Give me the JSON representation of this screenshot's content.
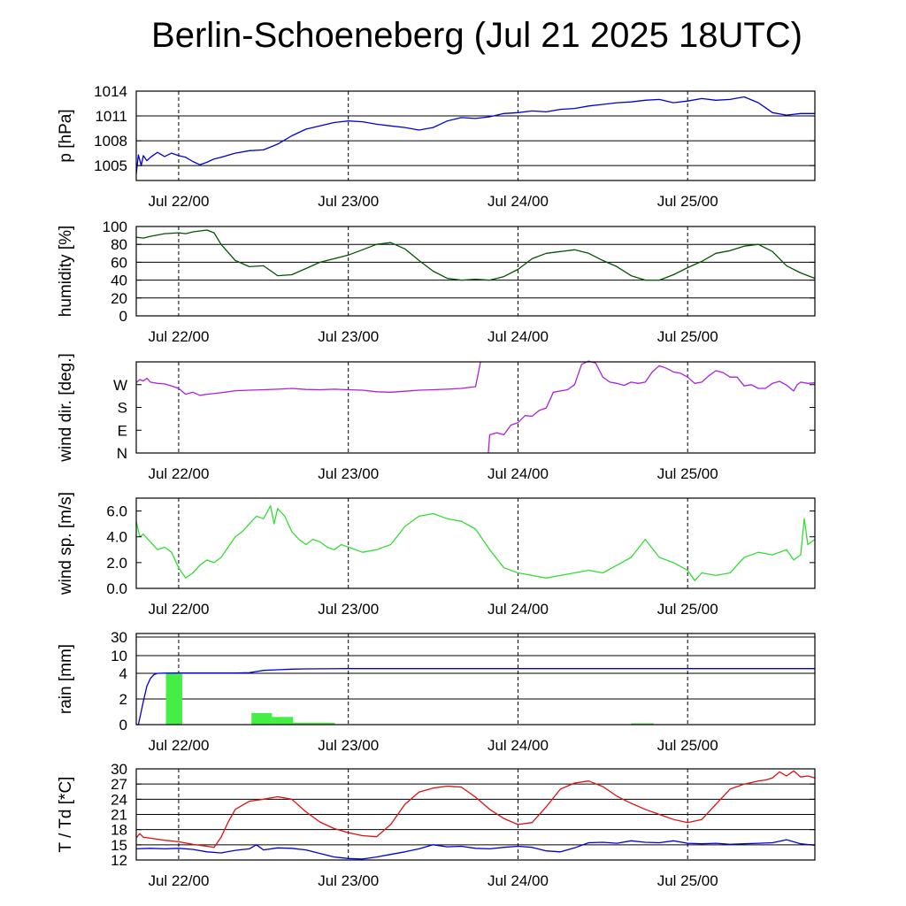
{
  "title": "Berlin-Schoeneberg (Jul 21 2025 18UTC)",
  "chart_data": [
    {
      "type": "line",
      "ylabel": "p [hPa]",
      "x_ticks": [
        "Jul 22/00",
        "Jul 23/00",
        "Jul 24/00",
        "Jul 25/00"
      ],
      "x_tick_hours": [
        6,
        30,
        54,
        78
      ],
      "xlim_hours": [
        0,
        96
      ],
      "yticks": [
        "1005",
        "1008",
        "1011",
        "1014"
      ],
      "ytick_values": [
        1005,
        1008,
        1011,
        1014
      ],
      "ylim": [
        1003.2,
        1014
      ],
      "grid": true,
      "series": [
        {
          "color": "#0000dd",
          "x": [
            0,
            0.3,
            0.7,
            1,
            1.5,
            2,
            3,
            4,
            5,
            6,
            7,
            8,
            9,
            10,
            11,
            12,
            14,
            16,
            18,
            20,
            22,
            24,
            26,
            28,
            30,
            32,
            34,
            36,
            38,
            40,
            42,
            44,
            46,
            48,
            50,
            52,
            54,
            56,
            58,
            60,
            62,
            64,
            66,
            68,
            70,
            72,
            74,
            76,
            78,
            80,
            82,
            84,
            86,
            88,
            89,
            90,
            92,
            94,
            96
          ],
          "y": [
            1004.0,
            1006.3,
            1005.0,
            1006.2,
            1005.6,
            1006.0,
            1006.6,
            1006.1,
            1006.5,
            1006.2,
            1006.0,
            1005.5,
            1005.1,
            1005.4,
            1005.8,
            1006.0,
            1006.5,
            1006.8,
            1006.9,
            1007.6,
            1008.6,
            1009.4,
            1009.8,
            1010.2,
            1010.4,
            1010.3,
            1010.0,
            1009.8,
            1009.6,
            1009.3,
            1009.6,
            1010.4,
            1010.8,
            1010.7,
            1010.9,
            1011.3,
            1011.4,
            1011.6,
            1011.5,
            1011.8,
            1011.9,
            1012.2,
            1012.4,
            1012.6,
            1012.7,
            1012.9,
            1013.0,
            1012.6,
            1012.8,
            1013.1,
            1012.9,
            1013.0,
            1013.3,
            1012.6,
            1012.0,
            1011.4,
            1011.1,
            1011.3,
            1011.3
          ]
        }
      ]
    },
    {
      "type": "line",
      "ylabel": "humidity [%]",
      "x_ticks": [
        "Jul 22/00",
        "Jul 23/00",
        "Jul 24/00",
        "Jul 25/00"
      ],
      "yticks": [
        "0",
        "20",
        "40",
        "60",
        "80",
        "100"
      ],
      "ytick_values": [
        0,
        20,
        40,
        60,
        80,
        100
      ],
      "ylim": [
        0,
        100
      ],
      "grid": true,
      "series": [
        {
          "color": "#005500",
          "x": [
            0,
            1,
            2,
            4,
            6,
            7,
            8,
            10,
            11,
            12,
            14,
            16,
            18,
            20,
            22,
            24,
            26,
            28,
            30,
            32,
            34,
            36,
            38,
            40,
            42,
            44,
            46,
            48,
            50,
            52,
            54,
            56,
            58,
            60,
            62,
            64,
            66,
            68,
            70,
            72,
            74,
            76,
            78,
            80,
            82,
            84,
            86,
            88,
            90,
            92,
            94,
            96
          ],
          "y": [
            88,
            87,
            89,
            92,
            93,
            92,
            94,
            96,
            93,
            80,
            62,
            55,
            56,
            45,
            46,
            53,
            60,
            64,
            68,
            74,
            80,
            82,
            75,
            62,
            50,
            42,
            40,
            41,
            40,
            44,
            52,
            64,
            70,
            72,
            74,
            70,
            62,
            55,
            45,
            40,
            40,
            46,
            54,
            61,
            70,
            73,
            78,
            80,
            72,
            56,
            48,
            42
          ]
        }
      ]
    },
    {
      "type": "line",
      "ylabel": "wind dir. [deg.]",
      "x_ticks": [
        "Jul 22/00",
        "Jul 23/00",
        "Jul 24/00",
        "Jul 25/00"
      ],
      "yticks": [
        "N",
        "E",
        "S",
        "W"
      ],
      "ytick_values": [
        0,
        90,
        180,
        270
      ],
      "ylim": [
        0,
        360
      ],
      "grid": false,
      "series": [
        {
          "color": "#aa22dd",
          "x": [
            0,
            0.5,
            1,
            1.5,
            2,
            3,
            4,
            5,
            6,
            7,
            8,
            9,
            10,
            12,
            14,
            16,
            18,
            20,
            22,
            24,
            26,
            28,
            30,
            32,
            34,
            36,
            38,
            40,
            42,
            44,
            46,
            48,
            48.7,
            null,
            49.8,
            50,
            51,
            52,
            53,
            54,
            55,
            56,
            57,
            58,
            59,
            60,
            61,
            62,
            63,
            64,
            65,
            66,
            67,
            68,
            69,
            70,
            71,
            72,
            73,
            74,
            75,
            76,
            77,
            78,
            79,
            80,
            81,
            82,
            83,
            84,
            85,
            86,
            87,
            88,
            89,
            90,
            91,
            92,
            93,
            93.5,
            94,
            95,
            96
          ],
          "y": [
            278,
            290,
            285,
            295,
            280,
            275,
            273,
            265,
            255,
            232,
            240,
            228,
            232,
            238,
            246,
            248,
            250,
            252,
            255,
            251,
            250,
            252,
            250,
            248,
            242,
            240,
            244,
            248,
            250,
            252,
            255,
            262,
            360,
            null,
            0,
            72,
            80,
            72,
            110,
            120,
            148,
            145,
            168,
            178,
            240,
            245,
            250,
            270,
            350,
            363,
            355,
            300,
            280,
            275,
            267,
            280,
            275,
            280,
            320,
            345,
            335,
            320,
            315,
            300,
            275,
            280,
            305,
            325,
            318,
            300,
            300,
            265,
            270,
            255,
            255,
            275,
            283,
            268,
            245,
            270,
            280,
            275,
            277
          ]
        }
      ]
    },
    {
      "type": "line",
      "ylabel": "wind sp. [m/s]",
      "x_ticks": [
        "Jul 22/00",
        "Jul 23/00",
        "Jul 24/00",
        "Jul 25/00"
      ],
      "yticks": [
        "0.0",
        "2.0",
        "4.0",
        "6.0"
      ],
      "ytick_values": [
        0,
        2,
        4,
        6
      ],
      "ylim": [
        0,
        7.0
      ],
      "grid": false,
      "series": [
        {
          "color": "#33dd33",
          "x": [
            0,
            0.5,
            1,
            2,
            3,
            4,
            5,
            6,
            7,
            8,
            9,
            10,
            11,
            12,
            13,
            14,
            15,
            16,
            17,
            18,
            19,
            19.5,
            20,
            21,
            22,
            23,
            24,
            25,
            26,
            27,
            28,
            29,
            30,
            32,
            34,
            36,
            38,
            40,
            42,
            44,
            46,
            48,
            50,
            52,
            54,
            56,
            58,
            60,
            62,
            64,
            66,
            68,
            70,
            72,
            74,
            76,
            78,
            79,
            80,
            82,
            84,
            86,
            88,
            90,
            92,
            93,
            94,
            94.5,
            95,
            96
          ],
          "y": [
            5.2,
            4.0,
            4.2,
            3.6,
            3.0,
            3.2,
            2.8,
            1.6,
            0.8,
            1.2,
            1.8,
            2.2,
            2.0,
            2.4,
            3.2,
            4.0,
            4.4,
            5.0,
            5.6,
            5.4,
            6.4,
            5.0,
            6.2,
            5.6,
            4.4,
            3.8,
            3.4,
            3.8,
            3.6,
            3.2,
            3.0,
            3.4,
            3.2,
            2.8,
            3.0,
            3.4,
            4.8,
            5.6,
            5.8,
            5.4,
            5.2,
            4.6,
            3.0,
            1.6,
            1.2,
            1.0,
            0.8,
            1.0,
            1.2,
            1.4,
            1.2,
            1.8,
            2.4,
            3.8,
            2.4,
            2.0,
            1.4,
            0.6,
            1.2,
            1.0,
            1.2,
            2.4,
            2.8,
            2.6,
            3.0,
            2.2,
            2.6,
            5.4,
            3.4,
            3.8
          ]
        }
      ]
    },
    {
      "type": "bar",
      "ylabel": "rain [mm]",
      "x_ticks": [
        "Jul 22/00",
        "Jul 23/00",
        "Jul 24/00",
        "Jul 25/00"
      ],
      "yticks": [
        "0",
        "2",
        "4",
        "10",
        "30"
      ],
      "ytick_values": [
        0,
        2,
        4,
        10,
        30
      ],
      "grid": true,
      "bars": [
        {
          "x": [
            4.2,
            6.5
          ],
          "value": 4.0
        },
        {
          "x": [
            16.3,
            19.2
          ],
          "value": 0.9
        },
        {
          "x": [
            19.2,
            22.2
          ],
          "value": 0.6
        },
        {
          "x": [
            22.2,
            28.1
          ],
          "value": 0.15
        },
        {
          "x": [
            70.0,
            73.2
          ],
          "value": 0.1
        }
      ],
      "bar_color": "#44ee44",
      "series": [
        {
          "color": "#0000dd",
          "x": [
            0,
            0.3,
            1,
            1.5,
            2,
            2.5,
            3,
            4,
            6,
            10,
            14,
            16,
            17,
            18,
            20,
            22,
            24,
            30,
            40,
            60,
            80,
            96
          ],
          "y": [
            0,
            0,
            1.8,
            3.0,
            3.6,
            3.9,
            4.0,
            4.05,
            4.1,
            4.1,
            4.1,
            4.2,
            4.6,
            5.0,
            5.2,
            5.4,
            5.5,
            5.6,
            5.6,
            5.6,
            5.6,
            5.6
          ]
        }
      ]
    },
    {
      "type": "line",
      "ylabel": "T / Td [*C]",
      "x_ticks": [
        "Jul 22/00",
        "Jul 23/00",
        "Jul 24/00",
        "Jul 25/00"
      ],
      "yticks": [
        "12",
        "15",
        "18",
        "21",
        "24",
        "27",
        "30"
      ],
      "ytick_values": [
        12,
        15,
        18,
        21,
        24,
        27,
        30
      ],
      "ylim": [
        12,
        30
      ],
      "grid": true,
      "series": [
        {
          "color": "#dd1111",
          "x": [
            0,
            0.5,
            1,
            2,
            4,
            6,
            8,
            10,
            11,
            12,
            13,
            14,
            16,
            18,
            20,
            22,
            24,
            26,
            28,
            30,
            32,
            34,
            36,
            38,
            40,
            42,
            44,
            46,
            48,
            50,
            52,
            54,
            56,
            58,
            60,
            62,
            64,
            66,
            68,
            70,
            72,
            74,
            76,
            78,
            80,
            82,
            84,
            86,
            88,
            89,
            90,
            91,
            92,
            93,
            94,
            95,
            96
          ],
          "y": [
            16.4,
            17.2,
            16.5,
            16.3,
            15.9,
            15.6,
            15.1,
            14.7,
            14.5,
            16.5,
            19.5,
            22.0,
            23.6,
            24.0,
            24.5,
            24.0,
            21.5,
            19.5,
            18.2,
            17.4,
            16.8,
            16.6,
            19.0,
            23.0,
            25.4,
            26.2,
            26.6,
            26.4,
            24.4,
            22.0,
            20.2,
            19.0,
            19.4,
            22.5,
            26.0,
            27.2,
            27.6,
            26.5,
            24.6,
            23.2,
            22.0,
            21.0,
            20.0,
            19.4,
            20.0,
            23.0,
            26.0,
            27.0,
            27.6,
            27.8,
            28.2,
            29.4,
            28.6,
            29.6,
            28.4,
            28.6,
            28.2
          ]
        },
        {
          "color": "#0000dd",
          "x": [
            0,
            2,
            4,
            6,
            8,
            10,
            12,
            14,
            16,
            17,
            18,
            20,
            22,
            24,
            26,
            28,
            30,
            32,
            34,
            36,
            38,
            40,
            42,
            44,
            46,
            48,
            50,
            52,
            54,
            56,
            58,
            60,
            62,
            64,
            66,
            68,
            70,
            72,
            74,
            76,
            78,
            80,
            82,
            84,
            86,
            88,
            90,
            92,
            94,
            96
          ],
          "y": [
            14.2,
            14.3,
            14.2,
            14.3,
            14.1,
            13.6,
            13.4,
            13.9,
            14.2,
            15.0,
            14.0,
            14.4,
            14.3,
            14.0,
            13.3,
            12.6,
            12.3,
            12.2,
            12.6,
            13.1,
            13.6,
            14.2,
            15.0,
            14.6,
            14.7,
            14.3,
            14.2,
            14.5,
            14.7,
            14.5,
            13.8,
            13.6,
            14.4,
            15.4,
            15.5,
            15.3,
            15.8,
            15.5,
            15.4,
            15.8,
            15.3,
            15.2,
            15.3,
            15.1,
            15.2,
            15.3,
            15.4,
            16.0,
            15.2,
            14.9
          ]
        }
      ]
    }
  ]
}
